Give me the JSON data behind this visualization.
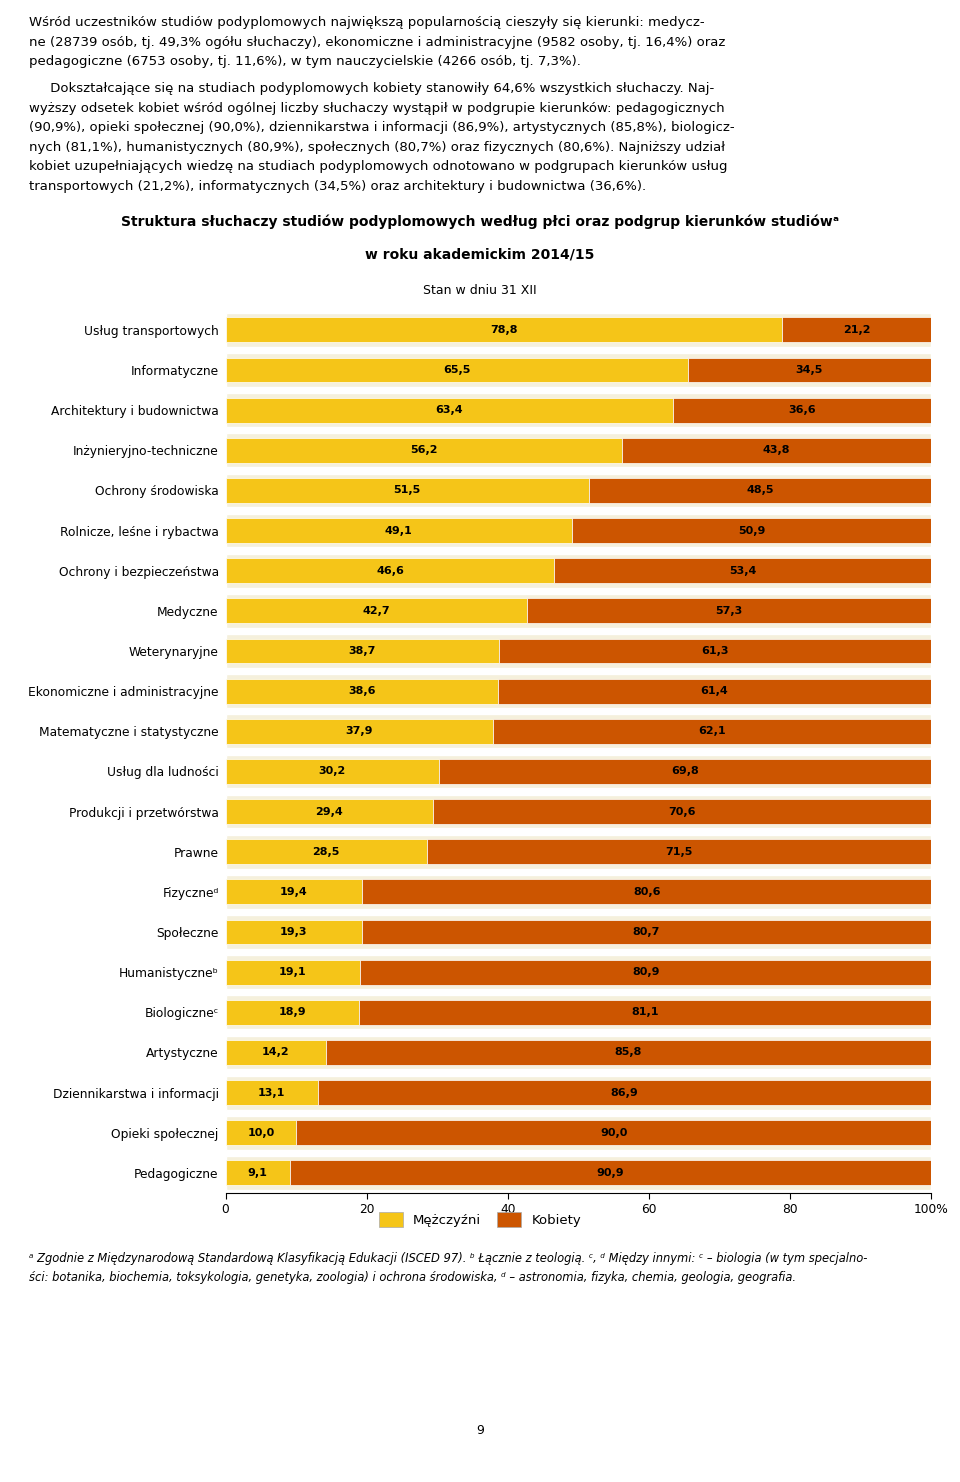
{
  "categories": [
    "Usług transportowych",
    "Informatyczne",
    "Architektury i budownictwa",
    "Inżynieryjno-techniczne",
    "Ochrony środowiska",
    "Rolnicze, leśne i rybactwa",
    "Ochrony i bezpieczeństwa",
    "Medyczne",
    "Weterynaryjne",
    "Ekonomiczne i administracyjne",
    "Matematyczne i statystyczne",
    "Usług dla ludności",
    "Produkcji i przetwórstwa",
    "Prawne",
    "Fizyczneᵈ",
    "Społeczne",
    "Humanistyczneᵇ",
    "Biologiczneᶜ",
    "Artystyczne",
    "Dziennikarstwa i informacji",
    "Opieki społecznej",
    "Pedagogiczne"
  ],
  "men": [
    78.8,
    65.5,
    63.4,
    56.2,
    51.5,
    49.1,
    46.6,
    42.7,
    38.7,
    38.6,
    37.9,
    30.2,
    29.4,
    28.5,
    19.4,
    19.3,
    19.1,
    18.9,
    14.2,
    13.1,
    10.0,
    9.1
  ],
  "women": [
    21.2,
    34.5,
    36.6,
    43.8,
    48.5,
    50.9,
    53.4,
    57.3,
    61.3,
    61.4,
    62.1,
    69.8,
    70.6,
    71.5,
    80.6,
    80.7,
    80.9,
    81.1,
    85.8,
    86.9,
    90.0,
    90.9
  ],
  "men_color": "#F5C518",
  "women_color": "#CC5500",
  "bar_bg_color": "#F5F0DC",
  "title_line1": "Struktura słuchaczy studiów podyplomowych według płci oraz podgrup kierunków studiówᵃ",
  "title_line2": "w roku akademickim 2014/15",
  "subtitle": "Stan w dniu 31 XII",
  "legend_men": "Mężczyźni",
  "legend_women": "Kobiety",
  "footnote_line1": "ᵃ Zgodnie z Międzynarodową Standardową Klasyfikacją Edukacji (ISCED 97). ᵇ Łącznie z teologią. ᶜ, ᵈ Między innymi: ᶜ – biologia (w tym specjalno-",
  "footnote_line2": "ści: botanika, biochemia, toksykologia, genetyka, zoologia) i ochrona środowiska, ᵈ – astronomia, fizyka, chemia, geologia, geografia.",
  "page_number": "9",
  "p1_line1": "Wśród uczestników studiów podyplomowych największą popularnością cieszyły się kierunki: medycz-",
  "p1_line2": "ne (28739 osób, tj. 49,3% ogółu słuchaczy), ekonomiczne i administracyjne (9582 osoby, tj. 16,4%) oraz",
  "p1_line3": "pedagogiczne (6753 osoby, tj. 11,6%), w tym nauczycielskie (4266 osób, tj. 7,3%).",
  "p2_line1": "     Dokształcające się na studiach podyplomowych kobiety stanowiły 64,6% wszystkich słuchaczy. Naj-",
  "p2_line2": "wyższy odsetek kobiet wśród ogólnej liczby słuchaczy wystąpił w podgrupie kierunków: pedagogicznych",
  "p2_line3": "(90,9%), opieki społecznej (90,0%), dziennikarstwa i informacji (86,9%), artystycznych (85,8%), biologicz-",
  "p2_line4": "nych (81,1%), humanistycznych (80,9%), społecznych (80,7%) oraz fizycznych (80,6%). Najniższy udział",
  "p2_line5": "kobiet uzupełniających wiedzę na studiach podyplomowych odnotowano w podgrupach kierunków usług",
  "p2_line6": "transportowych (21,2%), informatycznych (34,5%) oraz architektury i budownictwa (36,6%)."
}
